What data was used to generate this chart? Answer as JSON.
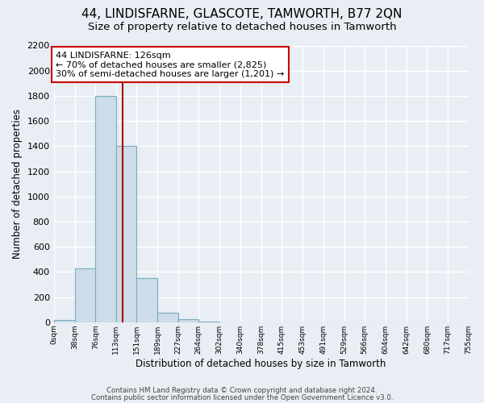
{
  "title": "44, LINDISFARNE, GLASCOTE, TAMWORTH, B77 2QN",
  "subtitle": "Size of property relative to detached houses in Tamworth",
  "xlabel": "Distribution of detached houses by size in Tamworth",
  "ylabel": "Number of detached properties",
  "bin_edges": [
    0,
    38,
    76,
    113,
    151,
    189,
    227,
    264,
    302,
    340,
    378,
    415,
    453,
    491,
    529,
    566,
    604,
    642,
    680,
    717,
    755
  ],
  "bin_labels": [
    "0sqm",
    "38sqm",
    "76sqm",
    "113sqm",
    "151sqm",
    "189sqm",
    "227sqm",
    "264sqm",
    "302sqm",
    "340sqm",
    "378sqm",
    "415sqm",
    "453sqm",
    "491sqm",
    "529sqm",
    "566sqm",
    "604sqm",
    "642sqm",
    "680sqm",
    "717sqm",
    "755sqm"
  ],
  "counts": [
    15,
    430,
    1800,
    1400,
    350,
    75,
    25,
    5,
    0,
    0,
    0,
    0,
    0,
    0,
    0,
    0,
    0,
    0,
    0,
    0
  ],
  "bar_facecolor": "#ccdce8",
  "bar_edgecolor": "#7aaabf",
  "property_value": 126,
  "vline_color": "#aa0000",
  "annotation_line1": "44 LINDISFARNE: 126sqm",
  "annotation_line2": "← 70% of detached houses are smaller (2,825)",
  "annotation_line3": "30% of semi-detached houses are larger (1,201) →",
  "annotation_box_color": "#ffffff",
  "annotation_box_edgecolor": "#cc0000",
  "ylim": [
    0,
    2200
  ],
  "yticks": [
    0,
    200,
    400,
    600,
    800,
    1000,
    1200,
    1400,
    1600,
    1800,
    2000,
    2200
  ],
  "footer1": "Contains HM Land Registry data © Crown copyright and database right 2024.",
  "footer2": "Contains public sector information licensed under the Open Government Licence v3.0.",
  "bg_color": "#e8eef4",
  "grid_color": "#ffffff",
  "title_fontsize": 11,
  "subtitle_fontsize": 9.5
}
